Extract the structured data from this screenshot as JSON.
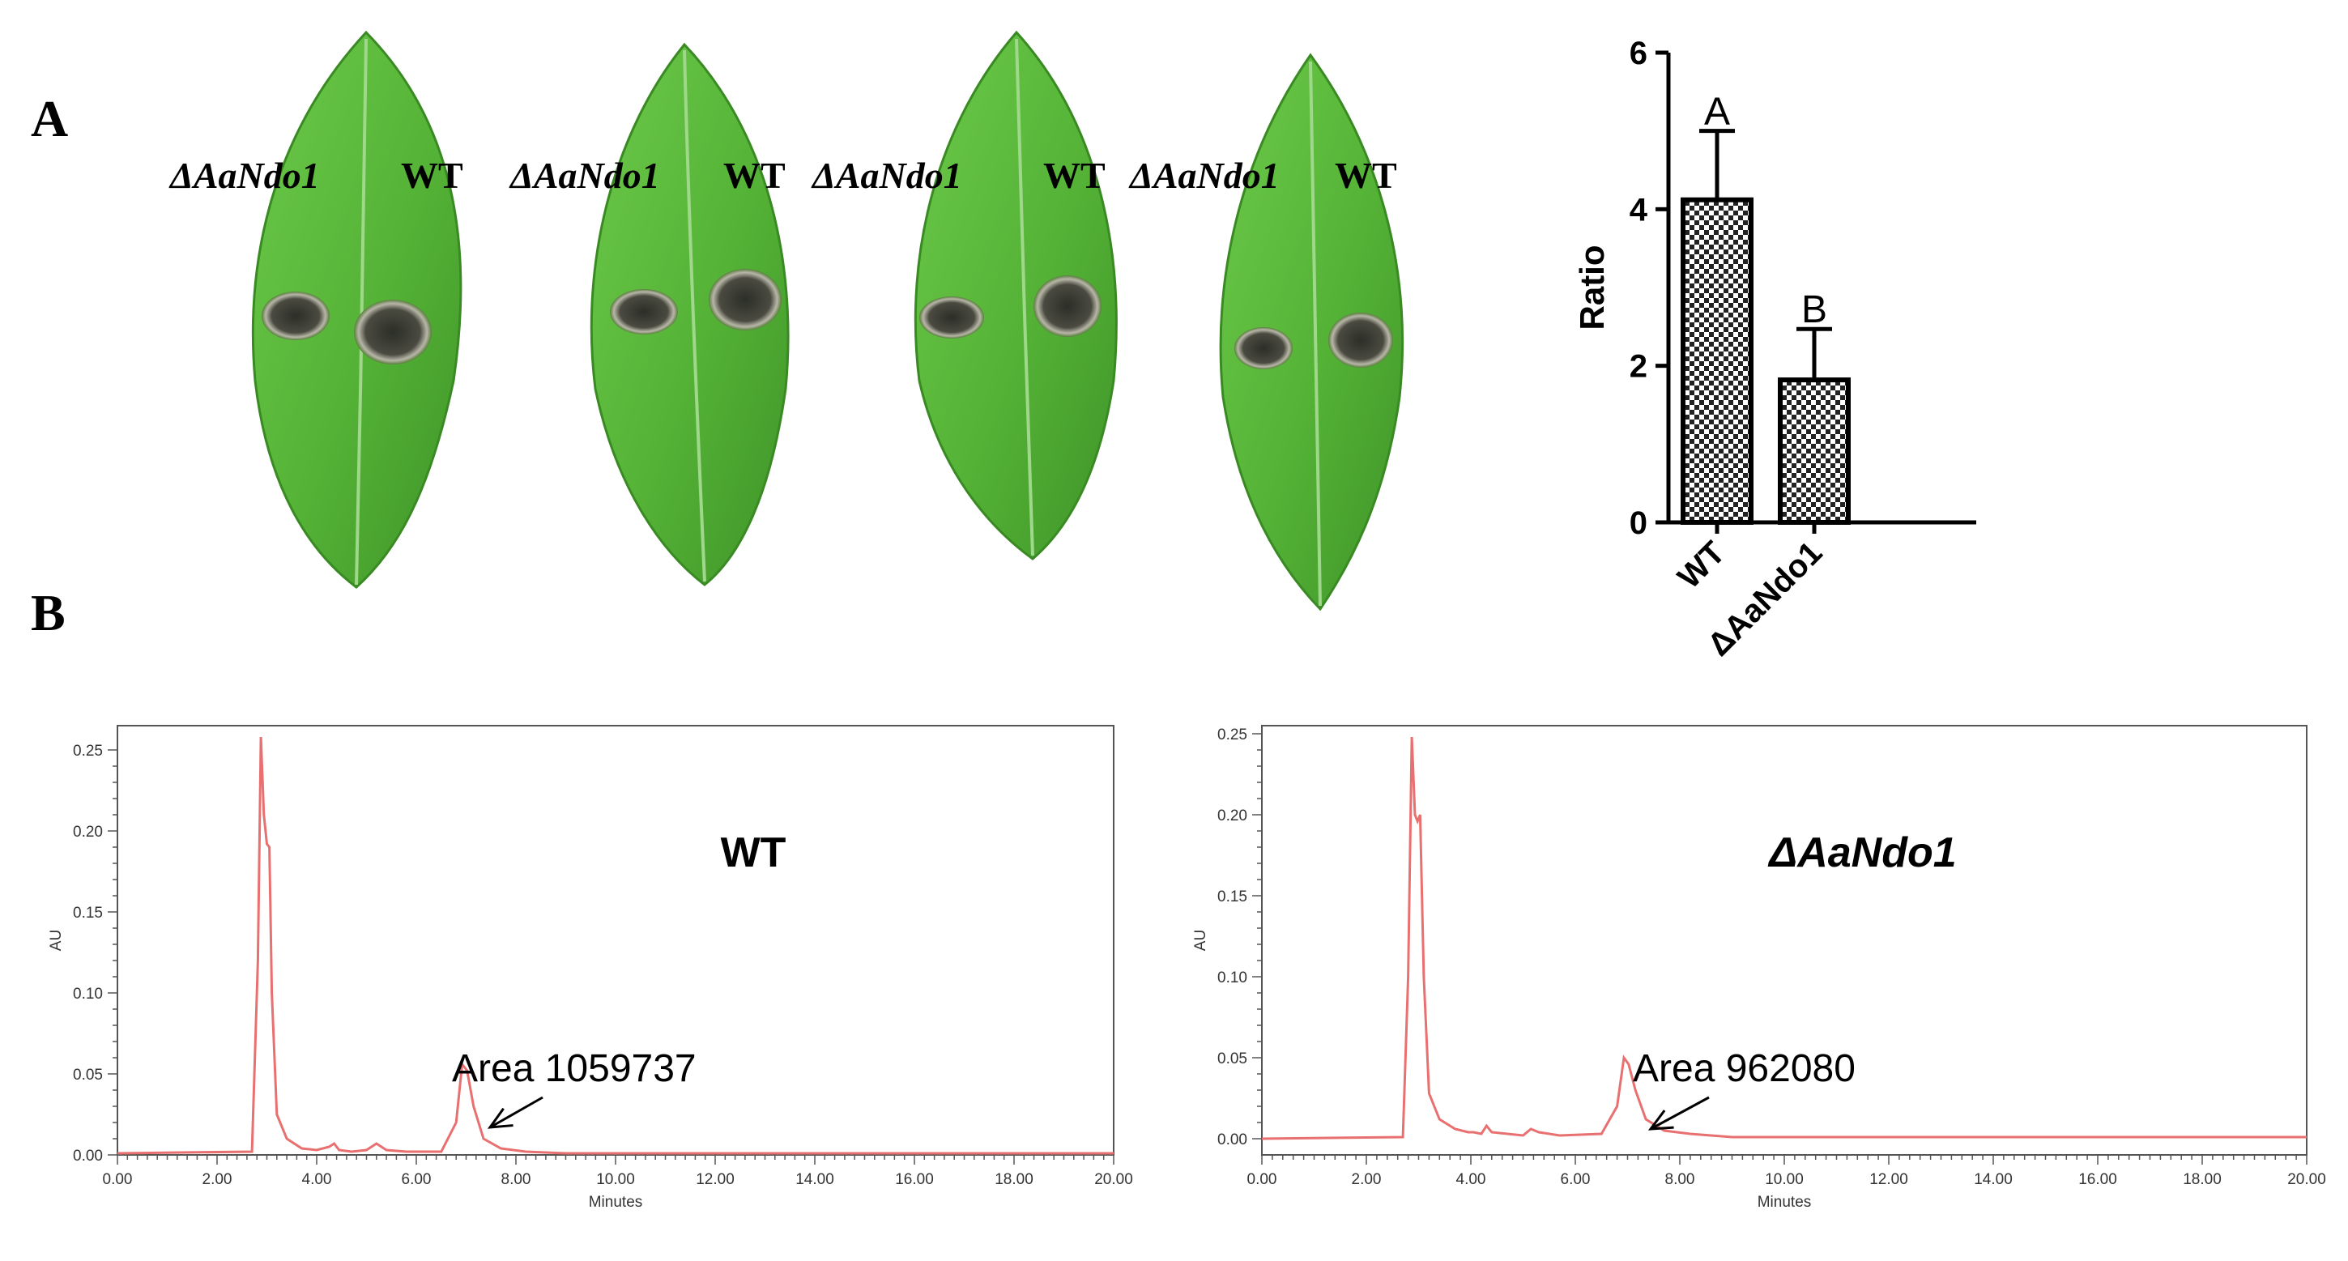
{
  "panel_a": {
    "letter": "A",
    "leaf_labels": [
      {
        "mutant": "ΔAaNdo1",
        "wt": "WT"
      },
      {
        "mutant": "ΔAaNdo1",
        "wt": "WT"
      },
      {
        "mutant": "ΔAaNdo1",
        "wt": "WT"
      },
      {
        "mutant": "ΔAaNdo1",
        "wt": "WT"
      }
    ],
    "colors": {
      "leaf": "#58b83a",
      "leaf_dark": "#3e8f28",
      "lesion": "#3a3d32"
    }
  },
  "panel_b": {
    "letter": "B"
  },
  "chart_data": [
    {
      "type": "bar",
      "categories": [
        "WT",
        "ΔAaNdo1"
      ],
      "values": [
        4.12,
        1.82
      ],
      "errors": [
        0.88,
        0.65
      ],
      "significance": [
        "A",
        "B"
      ],
      "ylabel": "Ratio",
      "ylim": [
        0,
        6
      ],
      "yticks": [
        "0",
        "2",
        "4",
        "6"
      ],
      "fill": "checkered black-white"
    },
    {
      "type": "line",
      "title": "WT",
      "xlabel": "Minutes",
      "ylabel": "AU",
      "xlim": [
        0,
        20
      ],
      "ylim": [
        0,
        0.265
      ],
      "xticks": [
        "0.00",
        "2.00",
        "4.00",
        "6.00",
        "8.00",
        "10.00",
        "12.00",
        "14.00",
        "16.00",
        "18.00",
        "20.00"
      ],
      "yticks": [
        "0.00",
        "0.05",
        "0.10",
        "0.15",
        "0.20",
        "0.25"
      ],
      "annotation": "Area 1059737",
      "series": [
        {
          "color": "#e87070",
          "x": [
            0,
            2.7,
            2.82,
            2.88,
            2.94,
            3.0,
            3.05,
            3.1,
            3.2,
            3.4,
            3.7,
            4.0,
            4.25,
            4.35,
            4.45,
            4.7,
            5.0,
            5.2,
            5.4,
            5.8,
            6.5,
            6.8,
            6.92,
            7.02,
            7.15,
            7.35,
            7.7,
            8.2,
            9.0,
            11,
            20
          ],
          "y": [
            0.001,
            0.002,
            0.12,
            0.258,
            0.21,
            0.192,
            0.19,
            0.1,
            0.025,
            0.01,
            0.004,
            0.003,
            0.005,
            0.007,
            0.003,
            0.002,
            0.003,
            0.007,
            0.003,
            0.002,
            0.002,
            0.02,
            0.056,
            0.052,
            0.03,
            0.01,
            0.004,
            0.002,
            0.001,
            0.001,
            0.001
          ]
        }
      ]
    },
    {
      "type": "line",
      "title": "ΔAaNdo1",
      "xlabel": "Minutes",
      "ylabel": "AU",
      "xlim": [
        0,
        20
      ],
      "ylim": [
        -0.01,
        0.255
      ],
      "xticks": [
        "0.00",
        "2.00",
        "4.00",
        "6.00",
        "8.00",
        "10.00",
        "12.00",
        "14.00",
        "16.00",
        "18.00",
        "20.00"
      ],
      "yticks": [
        "0.00",
        "0.05",
        "0.10",
        "0.15",
        "0.20",
        "0.25"
      ],
      "annotation": "Area 962080",
      "series": [
        {
          "color": "#e87070",
          "x": [
            0,
            2.7,
            2.8,
            2.87,
            2.93,
            2.98,
            3.03,
            3.1,
            3.2,
            3.4,
            3.7,
            3.95,
            4.05,
            4.2,
            4.3,
            4.4,
            4.7,
            5.0,
            5.15,
            5.3,
            5.7,
            6.5,
            6.8,
            6.93,
            7.02,
            7.15,
            7.35,
            7.7,
            8.2,
            9,
            12,
            20
          ],
          "y": [
            0,
            0.001,
            0.1,
            0.248,
            0.2,
            0.196,
            0.2,
            0.1,
            0.028,
            0.012,
            0.006,
            0.004,
            0.004,
            0.003,
            0.008,
            0.004,
            0.003,
            0.002,
            0.006,
            0.004,
            0.002,
            0.003,
            0.02,
            0.05,
            0.046,
            0.03,
            0.012,
            0.005,
            0.003,
            0.001,
            0.001,
            0.001
          ]
        }
      ]
    }
  ]
}
